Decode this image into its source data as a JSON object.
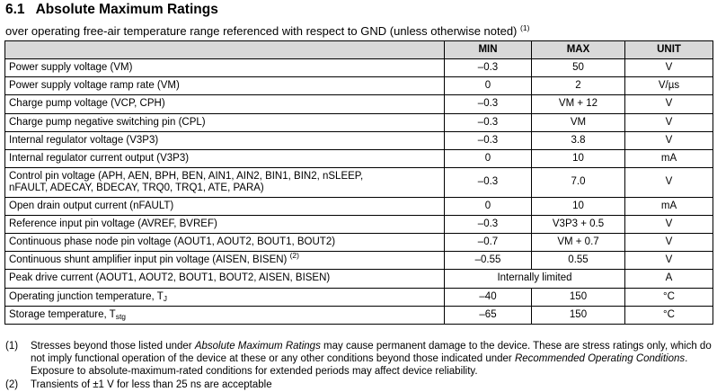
{
  "section": {
    "number": "6.1",
    "title": "Absolute Maximum Ratings",
    "subtitle": "over operating free-air temperature range referenced with respect to GND (unless otherwise noted)",
    "subtitle_note_ref": "(1)"
  },
  "table": {
    "headers": {
      "param": "",
      "min": "MIN",
      "max": "MAX",
      "unit": "UNIT"
    },
    "rows": [
      {
        "p": "Power supply voltage (VM)",
        "min": "–0.3",
        "max": "50",
        "unit": "V"
      },
      {
        "p": "Power supply voltage ramp rate (VM)",
        "min": "0",
        "max": "2",
        "unit": "V/µs"
      },
      {
        "p": "Charge pump voltage (VCP, CPH)",
        "min": "–0.3",
        "max": "VM + 12",
        "unit": "V"
      },
      {
        "p": "Charge pump negative switching pin (CPL)",
        "min": "–0.3",
        "max": "VM",
        "unit": "V"
      },
      {
        "p": "Internal regulator voltage (V3P3)",
        "min": "–0.3",
        "max": "3.8",
        "unit": "V"
      },
      {
        "p": "Internal regulator current output (V3P3)",
        "min": "0",
        "max": "10",
        "unit": "mA"
      },
      {
        "p1": "Control pin voltage (APH, AEN, BPH, BEN, AIN1, AIN2, BIN1, BIN2, nSLEEP,",
        "p2": "nFAULT, ADECAY, BDECAY, TRQ0, TRQ1, ATE, PARA)",
        "min": "–0.3",
        "max": "7.0",
        "unit": "V"
      },
      {
        "p": "Open drain output current (nFAULT)",
        "min": "0",
        "max": "10",
        "unit": "mA"
      },
      {
        "p": "Reference input pin voltage (AVREF, BVREF)",
        "min": "–0.3",
        "max": "V3P3 + 0.5",
        "unit": "V"
      },
      {
        "p": "Continuous phase node pin voltage (AOUT1, AOUT2, BOUT1, BOUT2)",
        "min": "–0.7",
        "max": "VM + 0.7",
        "unit": "V"
      },
      {
        "p": "Continuous shunt amplifier input pin voltage (AISEN, BISEN)",
        "ref": "(2)",
        "min": "–0.55",
        "max": "0.55",
        "unit": "V"
      },
      {
        "p": "Peak drive current (AOUT1, AOUT2, BOUT1, BOUT2, AISEN, BISEN)",
        "span": "Internally limited",
        "unit": "A"
      },
      {
        "p": "Operating junction temperature, T",
        "sub": "J",
        "min": "–40",
        "max": "150",
        "unit": "°C"
      },
      {
        "p": "Storage temperature, T",
        "sub": "stg",
        "min": "–65",
        "max": "150",
        "unit": "°C"
      }
    ]
  },
  "notes": [
    {
      "marker": "(1)",
      "t1": "Stresses beyond those listed under ",
      "e1": "Absolute Maximum Ratings",
      "t2": " may cause permanent damage to the device. These are stress ratings only, which do not imply functional operation of the device at these or any other conditions beyond those indicated under ",
      "e2": "Recommended Operating Conditions",
      "t3": ". Exposure to absolute-maximum-rated conditions for extended periods may affect device reliability."
    },
    {
      "marker": "(2)",
      "t1": "Transients of ±1 V for less than 25 ns are acceptable"
    }
  ]
}
